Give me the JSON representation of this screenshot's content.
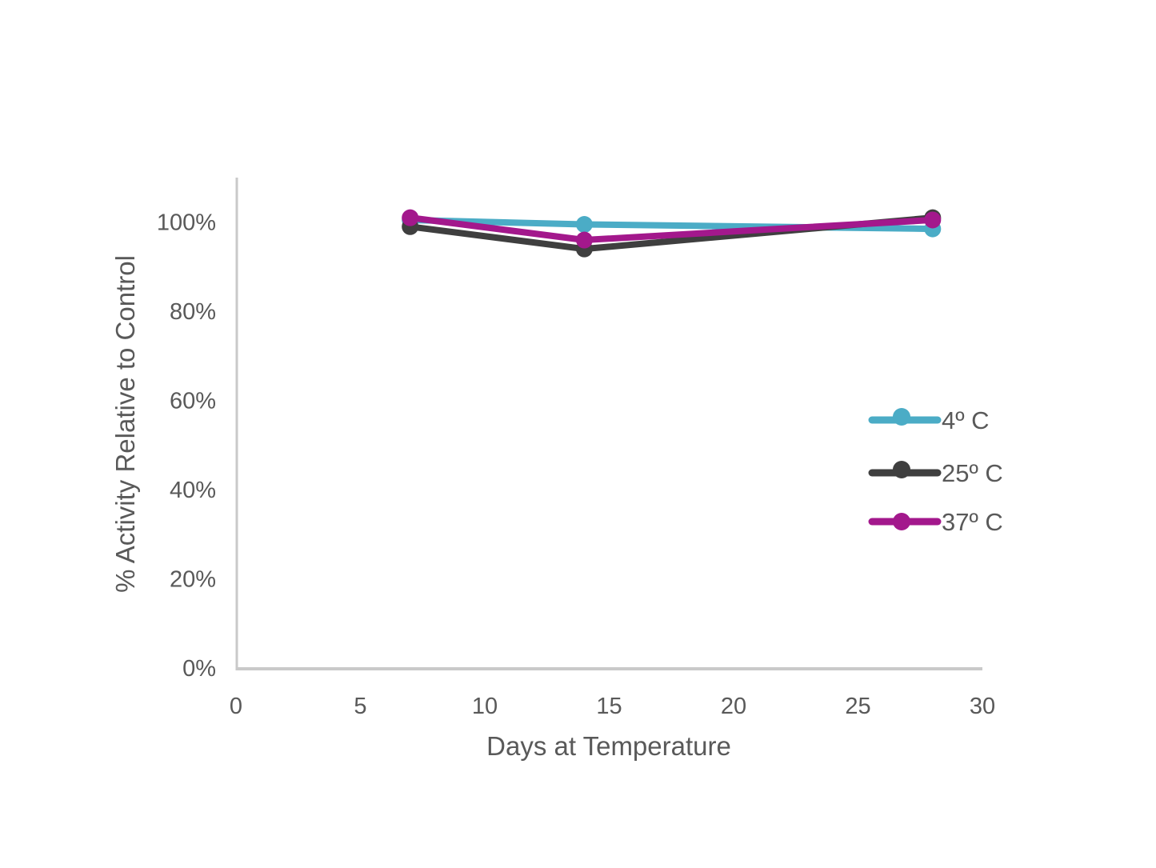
{
  "chart_data": {
    "type": "line",
    "title": "",
    "xlabel": "Days at Temperature",
    "ylabel": "% Activity Relative to Control",
    "xlim": [
      0,
      30
    ],
    "ylim": [
      0,
      110
    ],
    "grid": false,
    "legend_position": "inside-right-middle",
    "x": [
      7,
      14,
      28
    ],
    "x_ticks": [
      {
        "value": 0,
        "label": "0"
      },
      {
        "value": 5,
        "label": "5"
      },
      {
        "value": 10,
        "label": "10"
      },
      {
        "value": 15,
        "label": "15"
      },
      {
        "value": 20,
        "label": "20"
      },
      {
        "value": 25,
        "label": "25"
      },
      {
        "value": 30,
        "label": "30"
      }
    ],
    "y_ticks": [
      {
        "value": 0,
        "label": "0%"
      },
      {
        "value": 20,
        "label": "20%"
      },
      {
        "value": 40,
        "label": "40%"
      },
      {
        "value": 60,
        "label": "60%"
      },
      {
        "value": 80,
        "label": "80%"
      },
      {
        "value": 100,
        "label": "100%"
      }
    ],
    "series": [
      {
        "name": "4º C",
        "color": "#4BACC6",
        "values": [
          100.5,
          99.5,
          98.5
        ]
      },
      {
        "name": "25º C",
        "color": "#3F3F3F",
        "values": [
          99,
          94,
          101
        ]
      },
      {
        "name": "37º C",
        "color": "#A3188C",
        "values": [
          101,
          96,
          100.5
        ]
      }
    ]
  },
  "colors": {
    "axis_line": "#C9C9C9",
    "text": "#595959",
    "background": "#FFFFFF"
  }
}
